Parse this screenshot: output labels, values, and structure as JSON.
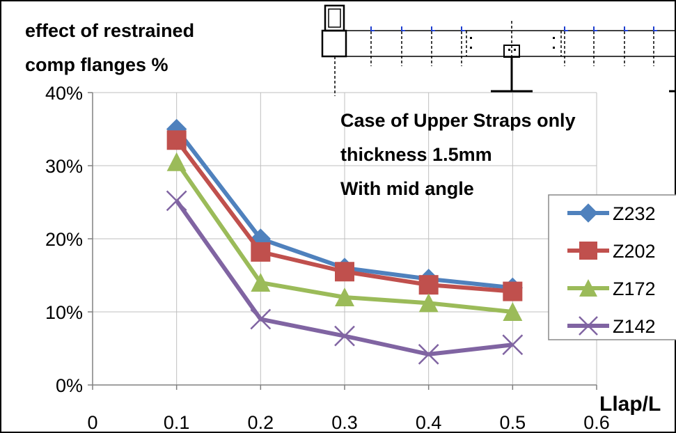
{
  "chart_data": {
    "type": "line",
    "ylabel_lines": [
      "effect of  restrained",
      "comp flanges %"
    ],
    "xlabel": "Llap/L",
    "annotation_lines": [
      "Case of Upper Straps  only",
      "thickness 1.5mm",
      "With mid angle"
    ],
    "x": [
      0.1,
      0.2,
      0.3,
      0.4,
      0.5
    ],
    "xlim": [
      0,
      0.6
    ],
    "ylim": [
      0,
      0.4
    ],
    "x_ticks": [
      0,
      0.1,
      0.2,
      0.3,
      0.4,
      0.5,
      0.6
    ],
    "x_tick_labels": [
      "0",
      "0.1",
      "0.2",
      "0.3",
      "0.4",
      "0.5",
      "0.6"
    ],
    "y_ticks": [
      0,
      0.1,
      0.2,
      0.3,
      0.4
    ],
    "y_tick_labels": [
      "0%",
      "10%",
      "20%",
      "30%",
      "40%"
    ],
    "grid": true,
    "legend_position": "right",
    "series": [
      {
        "name": "Z232",
        "values": [
          0.35,
          0.2,
          0.16,
          0.145,
          0.133
        ],
        "color": "#4F81BD",
        "marker": "diamond"
      },
      {
        "name": "Z202",
        "values": [
          0.335,
          0.182,
          0.155,
          0.137,
          0.128
        ],
        "color": "#C0504D",
        "marker": "square"
      },
      {
        "name": "Z172",
        "values": [
          0.305,
          0.14,
          0.12,
          0.112,
          0.1
        ],
        "color": "#9BBB59",
        "marker": "triangle"
      },
      {
        "name": "Z142",
        "values": [
          0.252,
          0.09,
          0.067,
          0.042,
          0.055
        ],
        "color": "#8064A2",
        "marker": "x"
      }
    ]
  }
}
